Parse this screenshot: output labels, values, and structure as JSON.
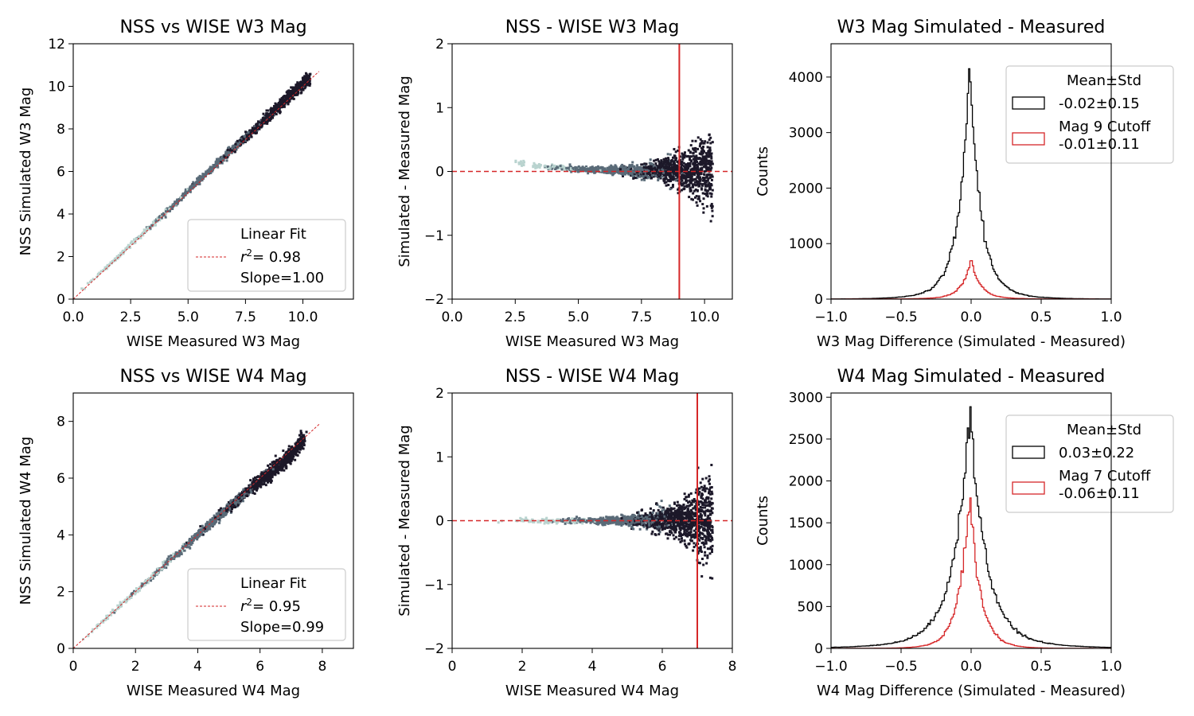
{
  "figure": {
    "colors": {
      "black": "#000000",
      "red": "#d62728",
      "density_low": "#b9d3cf",
      "density_mid": "#5a6b78",
      "density_high": "#1c1829"
    }
  },
  "chart_data": [
    {
      "id": "p1",
      "type": "scatter",
      "title": "NSS vs WISE W3 Mag",
      "xlabel": "WISE Measured W3 Mag",
      "ylabel": "NSS Simulated W3 Mag",
      "xlim": [
        0,
        12.2
      ],
      "ylim": [
        0,
        12
      ],
      "xticks": [
        0,
        2.5,
        5,
        7.5,
        10
      ],
      "xtick_labels": [
        "0.0",
        "2.5",
        "5.0",
        "7.5",
        "10.0"
      ],
      "yticks": [
        0,
        2,
        4,
        6,
        8,
        10,
        12
      ],
      "ytick_labels": [
        "0",
        "2",
        "4",
        "6",
        "8",
        "10",
        "12"
      ],
      "density_trend": [
        [
          0.2,
          0.25
        ],
        [
          2.0,
          2.05
        ],
        [
          4.0,
          4.05
        ],
        [
          6.0,
          6.1
        ],
        [
          7.5,
          7.6
        ],
        [
          8.5,
          8.6
        ],
        [
          9.5,
          9.6
        ],
        [
          10.3,
          10.4
        ]
      ],
      "fit_line": {
        "x": [
          0,
          10.7
        ],
        "y": [
          0,
          10.7
        ]
      },
      "legend": {
        "title": "Linear Fit",
        "r2_prefix": "r",
        "r2_sup": "2",
        "r2_value": "= 0.98",
        "slope": "Slope=1.00"
      }
    },
    {
      "id": "p2",
      "type": "scatter",
      "title": "NSS - WISE W3 Mag",
      "xlabel": "WISE Measured W3 Mag",
      "ylabel": "Simulated - Measured Mag",
      "xlim": [
        0,
        11.1
      ],
      "ylim": [
        -2,
        2
      ],
      "xticks": [
        0,
        2.5,
        5,
        7.5,
        10
      ],
      "xtick_labels": [
        "0.0",
        "2.5",
        "5.0",
        "7.5",
        "10.0"
      ],
      "yticks": [
        -2,
        -1,
        0,
        1,
        2
      ],
      "ytick_labels": [
        "−2",
        "−1",
        "0",
        "1",
        "2"
      ],
      "vline_x": 9,
      "hline_y": 0
    },
    {
      "id": "p3",
      "type": "histogram",
      "title": "W3 Mag Simulated - Measured",
      "xlabel": "W3 Mag Difference (Simulated - Measured)",
      "ylabel": "Counts",
      "xlim": [
        -1,
        1
      ],
      "ylim": [
        0,
        4600
      ],
      "xticks": [
        -1,
        -0.5,
        0,
        0.5,
        1
      ],
      "xtick_labels": [
        "−1.0",
        "−0.5",
        "0.0",
        "0.5",
        "1.0"
      ],
      "yticks": [
        0,
        1000,
        2000,
        3000,
        4000
      ],
      "ytick_labels": [
        "0",
        "1000",
        "2000",
        "3000",
        "4000"
      ],
      "series": [
        {
          "name": "-0.02±0.15",
          "color": "#000000",
          "peak": 4380,
          "center": -0.01,
          "width": 0.075,
          "tail": 0.2
        },
        {
          "name": "Mag 9 Cutoff\n-0.01±0.11",
          "color": "#d62728",
          "peak": 750,
          "center": 0.0,
          "width": 0.06,
          "tail": 0.18
        }
      ],
      "legend": {
        "title": "Mean±Std",
        "entries": [
          "-0.02±0.15",
          "Mag 9 Cutoff",
          "-0.01±0.11"
        ]
      }
    },
    {
      "id": "p4",
      "type": "scatter",
      "title": "NSS vs WISE W4 Mag",
      "xlabel": "WISE Measured W4 Mag",
      "ylabel": "NSS Simulated W4 Mag",
      "xlim": [
        0,
        9
      ],
      "ylim": [
        0,
        9
      ],
      "xticks": [
        0,
        2,
        4,
        6,
        8
      ],
      "xtick_labels": [
        "0",
        "2",
        "4",
        "6",
        "8"
      ],
      "yticks": [
        0,
        2,
        4,
        6,
        8
      ],
      "ytick_labels": [
        "0",
        "2",
        "4",
        "6",
        "8"
      ],
      "density_trend": [
        [
          0.2,
          0.2
        ],
        [
          2.0,
          2.0
        ],
        [
          4.0,
          4.0
        ],
        [
          5.5,
          5.45
        ],
        [
          6.5,
          6.35
        ],
        [
          7.1,
          6.9
        ],
        [
          7.4,
          7.4
        ]
      ],
      "fit_line": {
        "x": [
          0,
          7.9
        ],
        "y": [
          0,
          7.9
        ]
      },
      "legend": {
        "title": "Linear Fit",
        "r2_prefix": "r",
        "r2_sup": "2",
        "r2_value": "= 0.95",
        "slope": "Slope=0.99"
      }
    },
    {
      "id": "p5",
      "type": "scatter",
      "title": "NSS - WISE W4 Mag",
      "xlabel": "WISE Measured W4 Mag",
      "ylabel": "Simulated - Measured Mag",
      "xlim": [
        0,
        8
      ],
      "ylim": [
        -2,
        2
      ],
      "xticks": [
        0,
        2,
        4,
        6,
        8
      ],
      "xtick_labels": [
        "0",
        "2",
        "4",
        "6",
        "8"
      ],
      "yticks": [
        -2,
        -1,
        0,
        1,
        2
      ],
      "ytick_labels": [
        "−2",
        "−1",
        "0",
        "1",
        "2"
      ],
      "vline_x": 7,
      "hline_y": 0
    },
    {
      "id": "p6",
      "type": "histogram",
      "title": "W4 Mag Simulated - Measured",
      "xlabel": "W4 Mag Difference (Simulated - Measured)",
      "ylabel": "Counts",
      "xlim": [
        -1,
        1
      ],
      "ylim": [
        0,
        3050
      ],
      "xticks": [
        -1,
        -0.5,
        0,
        0.5,
        1
      ],
      "xtick_labels": [
        "−1.0",
        "−0.5",
        "0.0",
        "0.5",
        "1.0"
      ],
      "yticks": [
        0,
        500,
        1000,
        1500,
        2000,
        2500,
        3000
      ],
      "ytick_labels": [
        "0",
        "500",
        "1000",
        "1500",
        "2000",
        "2500",
        "3000"
      ],
      "series": [
        {
          "name": "0.03±0.22",
          "color": "#000000",
          "peak": 2900,
          "center": -0.01,
          "width": 0.11,
          "tail": 0.32
        },
        {
          "name": "Mag 7 Cutoff\n-0.06±0.11",
          "color": "#d62728",
          "peak": 1940,
          "center": -0.01,
          "width": 0.07,
          "tail": 0.14
        }
      ],
      "legend": {
        "title": "Mean±Std",
        "entries": [
          "0.03±0.22",
          "Mag 7 Cutoff",
          "-0.06±0.11"
        ]
      }
    }
  ]
}
